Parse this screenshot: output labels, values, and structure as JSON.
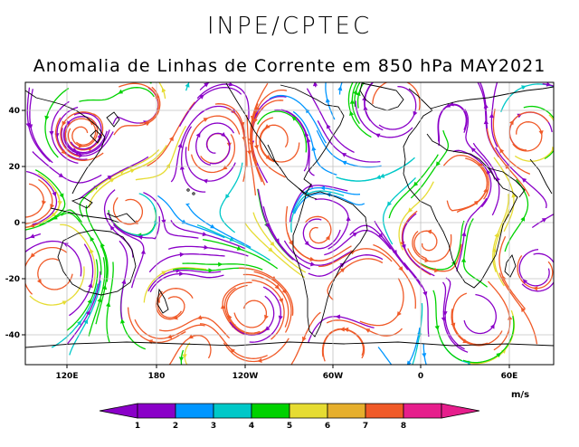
{
  "header": {
    "org": "INPE/CPTEC",
    "title": "Anomalia de Linhas de Corrente em 850 hPa MAY2021"
  },
  "map": {
    "lat_ticks": [
      "40",
      "20",
      "0",
      "-20",
      "-40"
    ],
    "lon_ticks": [
      "120E",
      "180",
      "120W",
      "60W",
      "0",
      "60E"
    ]
  },
  "colorbar": {
    "unit": "m/s",
    "labels": [
      "1",
      "2",
      "3",
      "4",
      "5",
      "6",
      "7",
      "8"
    ],
    "colors": [
      "#8a00c8",
      "#8a00c8",
      "#0096ff",
      "#00c8c8",
      "#00d200",
      "#e6dc32",
      "#e6af2d",
      "#f05a28",
      "#e61e8c",
      "#e61e8c"
    ]
  },
  "streamline_colors": [
    "#8a00c8",
    "#0096ff",
    "#00c8c8",
    "#00d200",
    "#e6dc32",
    "#f05a28"
  ]
}
